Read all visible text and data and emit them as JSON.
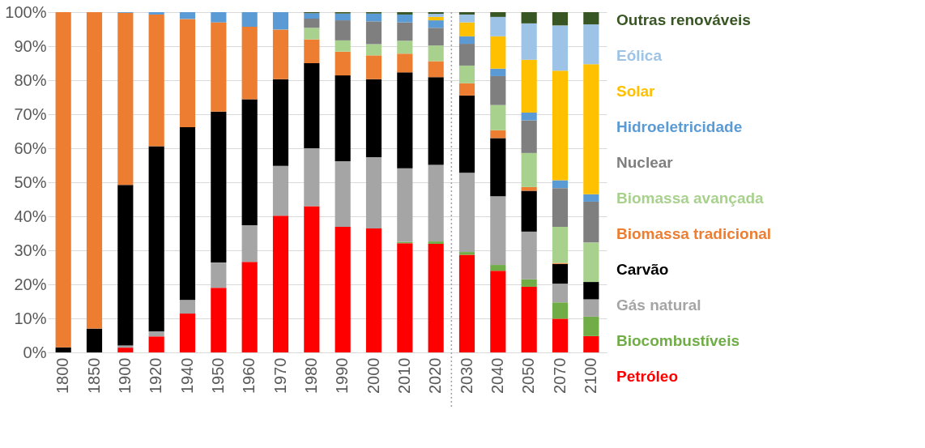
{
  "chart_data": {
    "type": "bar",
    "stacked": true,
    "categories": [
      "1800",
      "1850",
      "1900",
      "1920",
      "1940",
      "1950",
      "1960",
      "1970",
      "1980",
      "1990",
      "2000",
      "2010",
      "2020",
      "2030",
      "2040",
      "2050",
      "2070",
      "2100"
    ],
    "series": [
      {
        "name": "Petróleo",
        "color": "#ff0000",
        "values": [
          0,
          0,
          1.4,
          4.7,
          11.4,
          19,
          26.6,
          40.2,
          43,
          36.9,
          36.4,
          32.1,
          31.9,
          28.7,
          24,
          19.3,
          9.9,
          4.8
        ]
      },
      {
        "name": "Biocombustíveis",
        "color": "#70ad47",
        "values": [
          0,
          0,
          0,
          0,
          0,
          0,
          0,
          0,
          0,
          0,
          0,
          0.4,
          0.7,
          0.8,
          1.7,
          2.2,
          4.8,
          5.7
        ]
      },
      {
        "name": "Gás natural",
        "color": "#a5a5a5",
        "values": [
          0,
          0,
          0.6,
          1.5,
          4,
          7.4,
          10.8,
          14.6,
          17,
          19.3,
          21,
          21.6,
          22.5,
          23.3,
          20.2,
          14,
          5.5,
          5.1
        ]
      },
      {
        "name": "Carvão",
        "color": "#000000",
        "values": [
          1.5,
          7,
          47.2,
          54.4,
          50.8,
          44.4,
          37,
          25.5,
          25,
          25.2,
          22.9,
          28.2,
          25.8,
          22.7,
          17.1,
          12,
          5.8,
          5.1
        ]
      },
      {
        "name": "Biomassa tradicional",
        "color": "#ed7d31",
        "values": [
          98.5,
          93,
          50.6,
          38.7,
          31.8,
          26.2,
          21.3,
          14.6,
          7,
          7,
          7,
          5.5,
          4.7,
          3.6,
          2.3,
          1.1,
          0.3,
          0
        ]
      },
      {
        "name": "Biomassa avançada",
        "color": "#a9d18e",
        "values": [
          0,
          0,
          0,
          0,
          0,
          0,
          0,
          0,
          3.4,
          3.3,
          3.3,
          3.8,
          4.6,
          5.2,
          7.4,
          10,
          10.6,
          11.6
        ]
      },
      {
        "name": "Nuclear",
        "color": "#7f7f7f",
        "values": [
          0,
          0,
          0,
          0,
          0,
          0,
          0,
          0,
          2.7,
          5.9,
          6.7,
          5.4,
          5.2,
          6.4,
          8.5,
          9.6,
          11.4,
          12
        ]
      },
      {
        "name": "Hidroeletricidade",
        "color": "#5b9bd5",
        "values": [
          0,
          0,
          0.2,
          0.7,
          2,
          3,
          4.3,
          5.1,
          1.6,
          2,
          2.3,
          2.3,
          2.2,
          2.2,
          2.2,
          2.3,
          2.3,
          2.2
        ]
      },
      {
        "name": "Solar",
        "color": "#ffc000",
        "values": [
          0,
          0,
          0,
          0,
          0,
          0,
          0,
          0,
          0,
          0,
          0,
          0,
          1,
          4.1,
          9.5,
          15.5,
          32.2,
          38.2
        ]
      },
      {
        "name": "Eólica",
        "color": "#9dc3e6",
        "values": [
          0,
          0,
          0,
          0,
          0,
          0,
          0,
          0,
          0,
          0,
          0,
          0,
          0.9,
          2.3,
          5.7,
          10.7,
          13.3,
          11.7
        ]
      },
      {
        "name": "Outras renováveis",
        "color": "#375623",
        "values": [
          0,
          0,
          0,
          0,
          0,
          0,
          0,
          0,
          0.3,
          0.4,
          0.4,
          0.7,
          0.5,
          0.7,
          1.4,
          3.3,
          3.9,
          3.6
        ]
      }
    ],
    "ylim": [
      0,
      100
    ],
    "yticks": [
      {
        "value": 0,
        "label": "0%"
      },
      {
        "value": 10,
        "label": "10%"
      },
      {
        "value": 20,
        "label": "20%"
      },
      {
        "value": 30,
        "label": "30%"
      },
      {
        "value": 40,
        "label": "40%"
      },
      {
        "value": 50,
        "label": "50%"
      },
      {
        "value": 60,
        "label": "60%"
      },
      {
        "value": 70,
        "label": "70%"
      },
      {
        "value": 80,
        "label": "80%"
      },
      {
        "value": 90,
        "label": "90%"
      },
      {
        "value": 100,
        "label": "100%"
      }
    ],
    "ref_lines": [
      {
        "axis": "x",
        "value": "2030",
        "line_style": "dotted",
        "color": "#a0a0a0"
      }
    ],
    "grid": "y",
    "legend": "right"
  }
}
